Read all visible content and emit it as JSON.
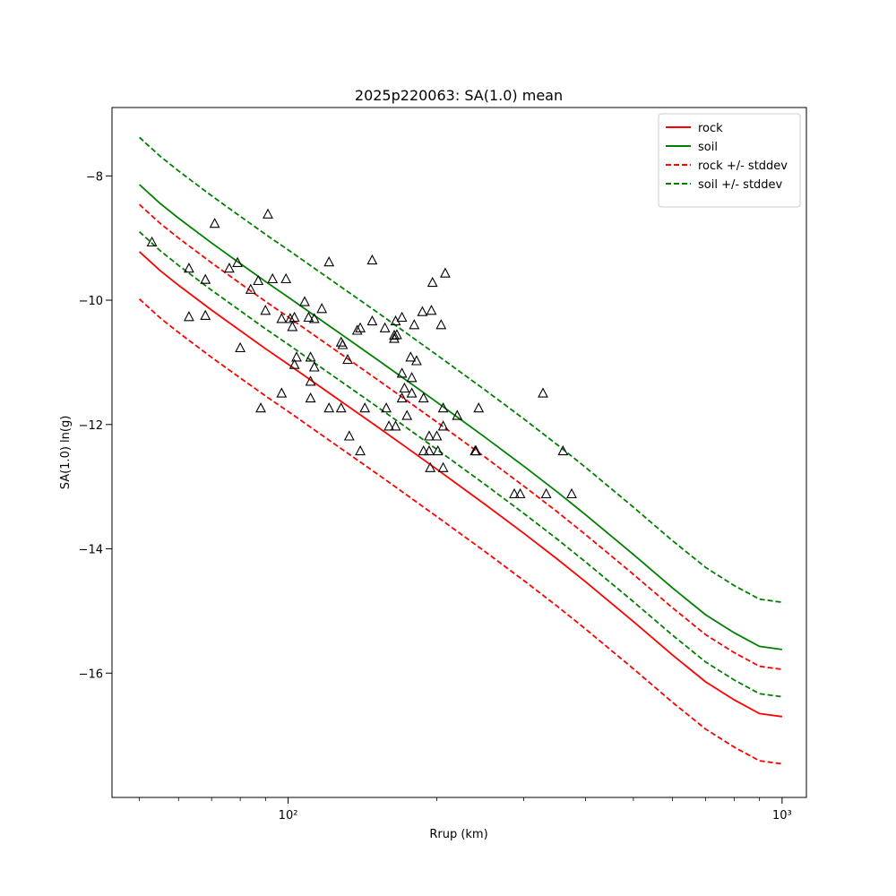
{
  "chart_data": {
    "type": "scatter",
    "title": "2025p220063: SA(1.0) mean",
    "xlabel": "Rrup (km)",
    "ylabel": "SA(1.0) ln(g)",
    "xscale": "log",
    "xlim": [
      44,
      1120
    ],
    "ylim": [
      -18.0,
      -6.9
    ],
    "xticks": [
      {
        "value": 100,
        "label": "10²"
      },
      {
        "value": 1000,
        "label": "10³"
      }
    ],
    "yticks": [
      {
        "value": -16,
        "label": "−16"
      },
      {
        "value": -14,
        "label": "−14"
      },
      {
        "value": -12,
        "label": "−12"
      },
      {
        "value": -10,
        "label": "−10"
      },
      {
        "value": -8,
        "label": "−8"
      }
    ],
    "grid": false,
    "legend_position": "top-right",
    "series": [
      {
        "name": "rock",
        "color": "#ff0000",
        "dash": false,
        "points": [
          [
            50,
            -9.22
          ],
          [
            55,
            -9.52
          ],
          [
            60,
            -9.76
          ],
          [
            70,
            -10.16
          ],
          [
            80,
            -10.49
          ],
          [
            90,
            -10.78
          ],
          [
            100,
            -11.03
          ],
          [
            125,
            -11.57
          ],
          [
            150,
            -12.01
          ],
          [
            175,
            -12.39
          ],
          [
            200,
            -12.72
          ],
          [
            250,
            -13.28
          ],
          [
            300,
            -13.75
          ],
          [
            350,
            -14.16
          ],
          [
            400,
            -14.53
          ],
          [
            500,
            -15.17
          ],
          [
            600,
            -15.71
          ],
          [
            700,
            -16.14
          ],
          [
            800,
            -16.43
          ],
          [
            900,
            -16.65
          ],
          [
            1000,
            -16.7
          ]
        ]
      },
      {
        "name": "soil",
        "color": "#008000",
        "dash": false,
        "points": [
          [
            50,
            -8.14
          ],
          [
            55,
            -8.44
          ],
          [
            60,
            -8.68
          ],
          [
            70,
            -9.08
          ],
          [
            80,
            -9.41
          ],
          [
            90,
            -9.7
          ],
          [
            100,
            -9.95
          ],
          [
            125,
            -10.49
          ],
          [
            150,
            -10.93
          ],
          [
            175,
            -11.31
          ],
          [
            200,
            -11.64
          ],
          [
            250,
            -12.2
          ],
          [
            300,
            -12.67
          ],
          [
            350,
            -13.08
          ],
          [
            400,
            -13.45
          ],
          [
            500,
            -14.09
          ],
          [
            600,
            -14.63
          ],
          [
            700,
            -15.06
          ],
          [
            800,
            -15.35
          ],
          [
            900,
            -15.57
          ],
          [
            1000,
            -15.62
          ]
        ]
      },
      {
        "name": "rock +/- stddev",
        "color": "#ff0000",
        "dash": true,
        "points": [
          [
            50,
            -8.46
          ],
          [
            55,
            -8.76
          ],
          [
            60,
            -9.0
          ],
          [
            70,
            -9.4
          ],
          [
            80,
            -9.73
          ],
          [
            90,
            -10.02
          ],
          [
            100,
            -10.27
          ],
          [
            125,
            -10.81
          ],
          [
            150,
            -11.25
          ],
          [
            175,
            -11.63
          ],
          [
            200,
            -11.96
          ],
          [
            250,
            -12.52
          ],
          [
            300,
            -12.99
          ],
          [
            350,
            -13.4
          ],
          [
            400,
            -13.77
          ],
          [
            500,
            -14.41
          ],
          [
            600,
            -14.95
          ],
          [
            700,
            -15.38
          ],
          [
            800,
            -15.67
          ],
          [
            900,
            -15.89
          ],
          [
            1000,
            -15.94
          ]
        ]
      },
      {
        "name": "",
        "color": "#ff0000",
        "dash": true,
        "points": [
          [
            50,
            -9.98
          ],
          [
            55,
            -10.28
          ],
          [
            60,
            -10.52
          ],
          [
            70,
            -10.92
          ],
          [
            80,
            -11.25
          ],
          [
            90,
            -11.54
          ],
          [
            100,
            -11.79
          ],
          [
            125,
            -12.33
          ],
          [
            150,
            -12.77
          ],
          [
            175,
            -13.15
          ],
          [
            200,
            -13.48
          ],
          [
            250,
            -14.04
          ],
          [
            300,
            -14.51
          ],
          [
            350,
            -14.92
          ],
          [
            400,
            -15.29
          ],
          [
            500,
            -15.93
          ],
          [
            600,
            -16.47
          ],
          [
            700,
            -16.9
          ],
          [
            800,
            -17.19
          ],
          [
            900,
            -17.41
          ],
          [
            1000,
            -17.46
          ]
        ]
      },
      {
        "name": "soil +/- stddev",
        "color": "#008000",
        "dash": true,
        "points": [
          [
            50,
            -7.38
          ],
          [
            55,
            -7.68
          ],
          [
            60,
            -7.92
          ],
          [
            70,
            -8.32
          ],
          [
            80,
            -8.65
          ],
          [
            90,
            -8.94
          ],
          [
            100,
            -9.19
          ],
          [
            125,
            -9.73
          ],
          [
            150,
            -10.17
          ],
          [
            175,
            -10.55
          ],
          [
            200,
            -10.88
          ],
          [
            250,
            -11.44
          ],
          [
            300,
            -11.91
          ],
          [
            350,
            -12.32
          ],
          [
            400,
            -12.69
          ],
          [
            500,
            -13.33
          ],
          [
            600,
            -13.87
          ],
          [
            700,
            -14.3
          ],
          [
            800,
            -14.59
          ],
          [
            900,
            -14.81
          ],
          [
            1000,
            -14.86
          ]
        ]
      },
      {
        "name": "",
        "color": "#008000",
        "dash": true,
        "points": [
          [
            50,
            -8.9
          ],
          [
            55,
            -9.2
          ],
          [
            60,
            -9.44
          ],
          [
            70,
            -9.84
          ],
          [
            80,
            -10.17
          ],
          [
            90,
            -10.46
          ],
          [
            100,
            -10.71
          ],
          [
            125,
            -11.25
          ],
          [
            150,
            -11.69
          ],
          [
            175,
            -12.07
          ],
          [
            200,
            -12.4
          ],
          [
            250,
            -12.96
          ],
          [
            300,
            -13.43
          ],
          [
            350,
            -13.84
          ],
          [
            400,
            -14.21
          ],
          [
            500,
            -14.85
          ],
          [
            600,
            -15.39
          ],
          [
            700,
            -15.82
          ],
          [
            800,
            -16.11
          ],
          [
            900,
            -16.33
          ],
          [
            1000,
            -16.38
          ]
        ]
      }
    ],
    "observations": {
      "marker": "triangle-open",
      "color": "#000000",
      "points": [
        [
          53,
          -9.07
        ],
        [
          63,
          -9.49
        ],
        [
          63,
          -10.27
        ],
        [
          68,
          -9.67
        ],
        [
          68,
          -10.25
        ],
        [
          71,
          -8.77
        ],
        [
          76,
          -9.49
        ],
        [
          79,
          -9.4
        ],
        [
          80,
          -10.77
        ],
        [
          84,
          -9.83
        ],
        [
          87,
          -9.69
        ],
        [
          88,
          -11.74
        ],
        [
          90,
          -10.17
        ],
        [
          91,
          -8.62
        ],
        [
          93,
          -9.66
        ],
        [
          97,
          -10.3
        ],
        [
          97,
          -11.5
        ],
        [
          99,
          -9.66
        ],
        [
          101,
          -10.3
        ],
        [
          102,
          -10.43
        ],
        [
          103,
          -10.28
        ],
        [
          103,
          -11.04
        ],
        [
          104,
          -10.92
        ],
        [
          108,
          -10.03
        ],
        [
          110,
          -10.28
        ],
        [
          111,
          -10.92
        ],
        [
          111,
          -11.31
        ],
        [
          111,
          -11.58
        ],
        [
          113,
          -10.3
        ],
        [
          113,
          -11.08
        ],
        [
          117,
          -10.14
        ],
        [
          121,
          -11.74
        ],
        [
          121,
          -9.39
        ],
        [
          128,
          -10.68
        ],
        [
          128,
          -11.74
        ],
        [
          129,
          -10.72
        ],
        [
          132,
          -10.96
        ],
        [
          133,
          -12.19
        ],
        [
          138,
          -10.49
        ],
        [
          140,
          -10.45
        ],
        [
          140,
          -12.43
        ],
        [
          143,
          -11.74
        ],
        [
          148,
          -9.36
        ],
        [
          148,
          -10.34
        ],
        [
          157,
          -10.45
        ],
        [
          158,
          -11.74
        ],
        [
          160,
          -12.03
        ],
        [
          164,
          -10.57
        ],
        [
          164,
          -10.62
        ],
        [
          165,
          -10.34
        ],
        [
          165,
          -12.03
        ],
        [
          166,
          -10.56
        ],
        [
          170,
          -10.28
        ],
        [
          170,
          -11.18
        ],
        [
          170,
          -11.58
        ],
        [
          172,
          -11.42
        ],
        [
          174,
          -11.86
        ],
        [
          177,
          -10.92
        ],
        [
          178,
          -11.25
        ],
        [
          178,
          -11.5
        ],
        [
          180,
          -10.4
        ],
        [
          182,
          -10.98
        ],
        [
          187,
          -10.19
        ],
        [
          188,
          -11.58
        ],
        [
          188,
          -12.43
        ],
        [
          193,
          -12.19
        ],
        [
          193,
          -12.43
        ],
        [
          194,
          -12.7
        ],
        [
          195,
          -10.17
        ],
        [
          196,
          -9.72
        ],
        [
          200,
          -12.19
        ],
        [
          201,
          -12.43
        ],
        [
          204,
          -10.4
        ],
        [
          206,
          -11.74
        ],
        [
          206,
          -12.03
        ],
        [
          206,
          -12.7
        ],
        [
          208,
          -9.57
        ],
        [
          220,
          -11.86
        ],
        [
          239,
          -12.43
        ],
        [
          240,
          -12.43
        ],
        [
          243,
          -11.74
        ],
        [
          287,
          -13.12
        ],
        [
          295,
          -13.12
        ],
        [
          328,
          -11.5
        ],
        [
          333,
          -13.12
        ],
        [
          360,
          -12.43
        ],
        [
          375,
          -13.12
        ]
      ]
    }
  }
}
